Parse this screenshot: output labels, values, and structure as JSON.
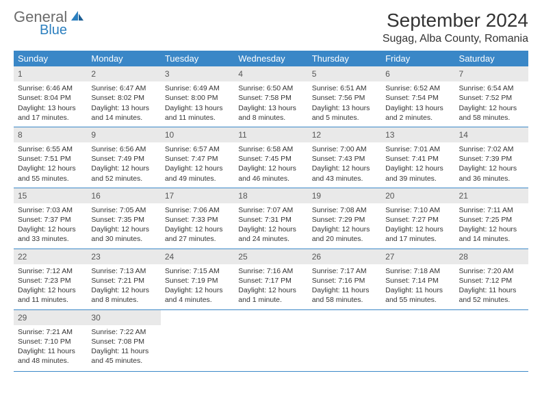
{
  "logo": {
    "top": "General",
    "bottom": "Blue"
  },
  "header": {
    "month_title": "September 2024",
    "location": "Sugag, Alba County, Romania"
  },
  "weekdays": [
    "Sunday",
    "Monday",
    "Tuesday",
    "Wednesday",
    "Thursday",
    "Friday",
    "Saturday"
  ],
  "colors": {
    "header_bg": "#3a87c7",
    "daynum_bg": "#e9e9e9",
    "logo_top": "#6b6b6b",
    "logo_bottom": "#2b7fbf"
  },
  "weeks": [
    [
      {
        "n": "1",
        "sr": "Sunrise: 6:46 AM",
        "ss": "Sunset: 8:04 PM",
        "d1": "Daylight: 13 hours",
        "d2": "and 17 minutes."
      },
      {
        "n": "2",
        "sr": "Sunrise: 6:47 AM",
        "ss": "Sunset: 8:02 PM",
        "d1": "Daylight: 13 hours",
        "d2": "and 14 minutes."
      },
      {
        "n": "3",
        "sr": "Sunrise: 6:49 AM",
        "ss": "Sunset: 8:00 PM",
        "d1": "Daylight: 13 hours",
        "d2": "and 11 minutes."
      },
      {
        "n": "4",
        "sr": "Sunrise: 6:50 AM",
        "ss": "Sunset: 7:58 PM",
        "d1": "Daylight: 13 hours",
        "d2": "and 8 minutes."
      },
      {
        "n": "5",
        "sr": "Sunrise: 6:51 AM",
        "ss": "Sunset: 7:56 PM",
        "d1": "Daylight: 13 hours",
        "d2": "and 5 minutes."
      },
      {
        "n": "6",
        "sr": "Sunrise: 6:52 AM",
        "ss": "Sunset: 7:54 PM",
        "d1": "Daylight: 13 hours",
        "d2": "and 2 minutes."
      },
      {
        "n": "7",
        "sr": "Sunrise: 6:54 AM",
        "ss": "Sunset: 7:52 PM",
        "d1": "Daylight: 12 hours",
        "d2": "and 58 minutes."
      }
    ],
    [
      {
        "n": "8",
        "sr": "Sunrise: 6:55 AM",
        "ss": "Sunset: 7:51 PM",
        "d1": "Daylight: 12 hours",
        "d2": "and 55 minutes."
      },
      {
        "n": "9",
        "sr": "Sunrise: 6:56 AM",
        "ss": "Sunset: 7:49 PM",
        "d1": "Daylight: 12 hours",
        "d2": "and 52 minutes."
      },
      {
        "n": "10",
        "sr": "Sunrise: 6:57 AM",
        "ss": "Sunset: 7:47 PM",
        "d1": "Daylight: 12 hours",
        "d2": "and 49 minutes."
      },
      {
        "n": "11",
        "sr": "Sunrise: 6:58 AM",
        "ss": "Sunset: 7:45 PM",
        "d1": "Daylight: 12 hours",
        "d2": "and 46 minutes."
      },
      {
        "n": "12",
        "sr": "Sunrise: 7:00 AM",
        "ss": "Sunset: 7:43 PM",
        "d1": "Daylight: 12 hours",
        "d2": "and 43 minutes."
      },
      {
        "n": "13",
        "sr": "Sunrise: 7:01 AM",
        "ss": "Sunset: 7:41 PM",
        "d1": "Daylight: 12 hours",
        "d2": "and 39 minutes."
      },
      {
        "n": "14",
        "sr": "Sunrise: 7:02 AM",
        "ss": "Sunset: 7:39 PM",
        "d1": "Daylight: 12 hours",
        "d2": "and 36 minutes."
      }
    ],
    [
      {
        "n": "15",
        "sr": "Sunrise: 7:03 AM",
        "ss": "Sunset: 7:37 PM",
        "d1": "Daylight: 12 hours",
        "d2": "and 33 minutes."
      },
      {
        "n": "16",
        "sr": "Sunrise: 7:05 AM",
        "ss": "Sunset: 7:35 PM",
        "d1": "Daylight: 12 hours",
        "d2": "and 30 minutes."
      },
      {
        "n": "17",
        "sr": "Sunrise: 7:06 AM",
        "ss": "Sunset: 7:33 PM",
        "d1": "Daylight: 12 hours",
        "d2": "and 27 minutes."
      },
      {
        "n": "18",
        "sr": "Sunrise: 7:07 AM",
        "ss": "Sunset: 7:31 PM",
        "d1": "Daylight: 12 hours",
        "d2": "and 24 minutes."
      },
      {
        "n": "19",
        "sr": "Sunrise: 7:08 AM",
        "ss": "Sunset: 7:29 PM",
        "d1": "Daylight: 12 hours",
        "d2": "and 20 minutes."
      },
      {
        "n": "20",
        "sr": "Sunrise: 7:10 AM",
        "ss": "Sunset: 7:27 PM",
        "d1": "Daylight: 12 hours",
        "d2": "and 17 minutes."
      },
      {
        "n": "21",
        "sr": "Sunrise: 7:11 AM",
        "ss": "Sunset: 7:25 PM",
        "d1": "Daylight: 12 hours",
        "d2": "and 14 minutes."
      }
    ],
    [
      {
        "n": "22",
        "sr": "Sunrise: 7:12 AM",
        "ss": "Sunset: 7:23 PM",
        "d1": "Daylight: 12 hours",
        "d2": "and 11 minutes."
      },
      {
        "n": "23",
        "sr": "Sunrise: 7:13 AM",
        "ss": "Sunset: 7:21 PM",
        "d1": "Daylight: 12 hours",
        "d2": "and 8 minutes."
      },
      {
        "n": "24",
        "sr": "Sunrise: 7:15 AM",
        "ss": "Sunset: 7:19 PM",
        "d1": "Daylight: 12 hours",
        "d2": "and 4 minutes."
      },
      {
        "n": "25",
        "sr": "Sunrise: 7:16 AM",
        "ss": "Sunset: 7:17 PM",
        "d1": "Daylight: 12 hours",
        "d2": "and 1 minute."
      },
      {
        "n": "26",
        "sr": "Sunrise: 7:17 AM",
        "ss": "Sunset: 7:16 PM",
        "d1": "Daylight: 11 hours",
        "d2": "and 58 minutes."
      },
      {
        "n": "27",
        "sr": "Sunrise: 7:18 AM",
        "ss": "Sunset: 7:14 PM",
        "d1": "Daylight: 11 hours",
        "d2": "and 55 minutes."
      },
      {
        "n": "28",
        "sr": "Sunrise: 7:20 AM",
        "ss": "Sunset: 7:12 PM",
        "d1": "Daylight: 11 hours",
        "d2": "and 52 minutes."
      }
    ],
    [
      {
        "n": "29",
        "sr": "Sunrise: 7:21 AM",
        "ss": "Sunset: 7:10 PM",
        "d1": "Daylight: 11 hours",
        "d2": "and 48 minutes."
      },
      {
        "n": "30",
        "sr": "Sunrise: 7:22 AM",
        "ss": "Sunset: 7:08 PM",
        "d1": "Daylight: 11 hours",
        "d2": "and 45 minutes."
      },
      {
        "n": "",
        "sr": "",
        "ss": "",
        "d1": "",
        "d2": ""
      },
      {
        "n": "",
        "sr": "",
        "ss": "",
        "d1": "",
        "d2": ""
      },
      {
        "n": "",
        "sr": "",
        "ss": "",
        "d1": "",
        "d2": ""
      },
      {
        "n": "",
        "sr": "",
        "ss": "",
        "d1": "",
        "d2": ""
      },
      {
        "n": "",
        "sr": "",
        "ss": "",
        "d1": "",
        "d2": ""
      }
    ]
  ]
}
